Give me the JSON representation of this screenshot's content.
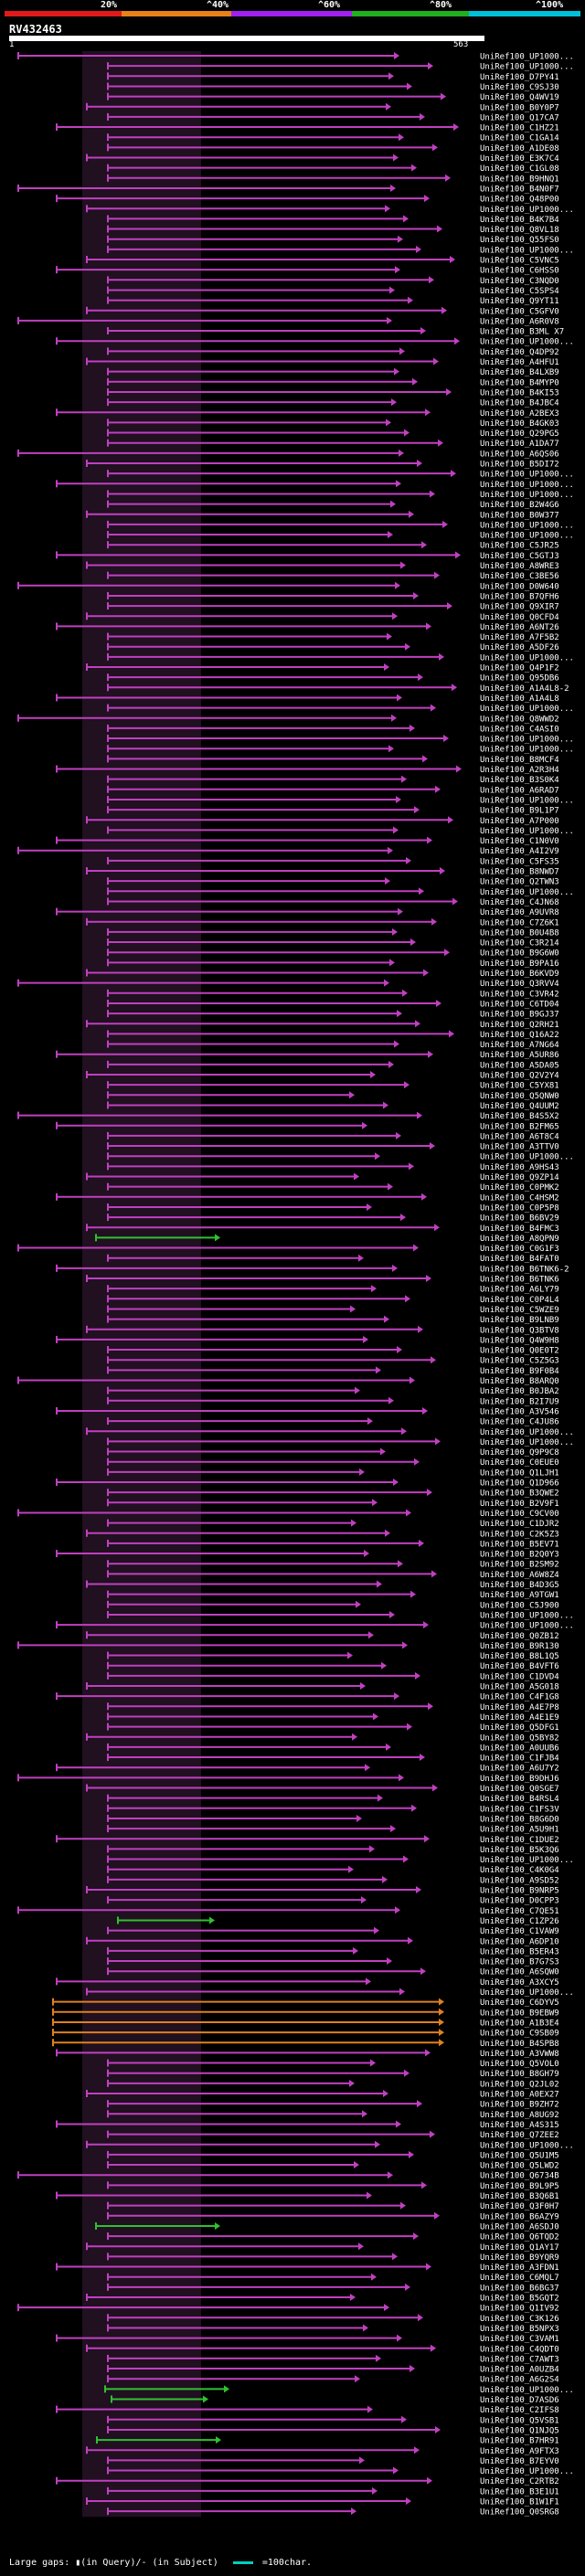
{
  "scale": {
    "labels": [
      "20%",
      "^40%",
      "^60%",
      "^80%",
      "^100%"
    ],
    "colors": [
      "#e11919",
      "#e8801a",
      "#a020f0",
      "#20b020",
      "#00c0d8"
    ]
  },
  "query": {
    "name": "RV432463",
    "start": "1",
    "end": "563"
  },
  "hit_colors": {
    "magenta": "#c040c0",
    "green": "#30c030",
    "orange": "#e08020"
  },
  "hits": [
    "UniRef100_UP1000...",
    "UniRef100_UP1000...",
    "UniRef100_D7PY41",
    "UniRef100_C9SJ30",
    "UniRef100_Q4WV19",
    "UniRef100_B0Y0P7",
    "UniRef100_Q17CA7",
    "UniRef100_C1HZ21",
    "UniRef100_C1GA14",
    "UniRef100_A1DE08",
    "UniRef100_E3K7C4",
    "UniRef100_C1GL08",
    "UniRef100_B9HNQ1",
    "UniRef100_B4N0F7",
    "UniRef100_Q48P00",
    "UniRef100_UP1000...",
    "UniRef100_B4K7B4",
    "UniRef100_Q8VL18",
    "UniRef100_Q55FS0",
    "UniRef100_UP1000...",
    "UniRef100_C5VNC5",
    "UniRef100_C6HSS0",
    "UniRef100_C3NQD0",
    "UniRef100_C5SPS4",
    "UniRef100_Q9YT11",
    "UniRef100_C5GFV0",
    "UniRef100_A6R0V8",
    "UniRef100_B3ML X7",
    "UniRef100_UP1000...",
    "UniRef100_Q4DP92",
    "UniRef100_A4HFU1",
    "UniRef100_B4LXB9",
    "UniRef100_B4MYP0",
    "UniRef100_B4KI53",
    "UniRef100_B4JBC4",
    "UniRef100_A2BEX3",
    "UniRef100_B4GK03",
    "UniRef100_Q29PG5",
    "UniRef100_A1DA77",
    "UniRef100_A6QS06",
    "UniRef100_B5DI72",
    "UniRef100_UP1000...",
    "UniRef100_UP1000...",
    "UniRef100_UP1000...",
    "UniRef100_B2W4G6",
    "UniRef100_B0W377",
    "UniRef100_UP1000...",
    "UniRef100_UP1000...",
    "UniRef100_C5JR25",
    "UniRef100_C5GTJ3",
    "UniRef100_A8WRE3",
    "UniRef100_C3BE56",
    "UniRef100_D0W640",
    "UniRef100_B7QFH6",
    "UniRef100_Q9XIR7",
    "UniRef100_Q0CFD4",
    "UniRef100_A6NT26",
    "UniRef100_A7F5B2",
    "UniRef100_A5DF26",
    "UniRef100_UP1000...",
    "UniRef100_Q4P1F2",
    "UniRef100_Q95DB6",
    "UniRef100_A1A4L8-2",
    "UniRef100_A1A4L8",
    "UniRef100_UP1000...",
    "UniRef100_Q8WWD2",
    "UniRef100_C4ASI0",
    "UniRef100_UP1000...",
    "UniRef100_UP1000...",
    "UniRef100_B8MCF4",
    "UniRef100_A2R3H4",
    "UniRef100_B3S0K4",
    "UniRef100_A6RAD7",
    "UniRef100_UP1000...",
    "UniRef100_B9L1P7",
    "UniRef100_A7P000",
    "UniRef100_UP1000...",
    "UniRef100_C1N0V0",
    "UniRef100_A4I2V9",
    "UniRef100_C5FS35",
    "UniRef100_B8NWD7",
    "UniRef100_Q2TWN3",
    "UniRef100_UP1000...",
    "UniRef100_C4JN68",
    "UniRef100_A9UVR8",
    "UniRef100_C7Z6K1",
    "UniRef100_B0U4B8",
    "UniRef100_C3R214",
    "UniRef100_B9G6W0",
    "UniRef100_B9PA16",
    "UniRef100_B6KVD9",
    "UniRef100_Q3RVV4",
    "UniRef100_C3VR42",
    "UniRef100_C6TD04",
    "UniRef100_B9GJ37",
    "UniRef100_Q2RH21",
    "UniRef100_Q16A22",
    "UniRef100_A7NG64",
    "UniRef100_A5UR86",
    "UniRef100_A5DA05",
    "UniRef100_Q2V2Y4",
    "UniRef100_C5YX81",
    "UniRef100_Q5QNW0",
    "UniRef100_Q4UUM2",
    "UniRef100_B4S5X2",
    "UniRef100_B2FM65",
    "UniRef100_A6T8C4",
    "UniRef100_A3TTV0",
    "UniRef100_UP1000...",
    "UniRef100_A9HS43",
    "UniRef100_Q9ZP14",
    "UniRef100_C0PMK2",
    "UniRef100_C4HSM2",
    "UniRef100_C0P5P8",
    "UniRef100_B6BV29",
    "UniRef100_B4FMC3",
    "UniRef100_A8QPN9",
    "UniRef100_C0G1F3",
    "UniRef100_B4FAT0",
    "UniRef100_B6TNK6-2",
    "UniRef100_B6TNK6",
    "UniRef100_A6LY79",
    "UniRef100_C0P4L4",
    "UniRef100_C5WZE9",
    "UniRef100_B9LNB9",
    "UniRef100_Q3BTV8",
    "UniRef100_Q4W9H8",
    "UniRef100_Q0E0T2",
    "UniRef100_C5Z5G3",
    "UniRef100_B9F0B4",
    "UniRef100_B8ARQ0",
    "UniRef100_B0JBA2",
    "UniRef100_B2I7U9",
    "UniRef100_A3V546",
    "UniRef100_C4JU86",
    "UniRef100_UP1000...",
    "UniRef100_UP1000...",
    "UniRef100_Q9P9C8",
    "UniRef100_C0EUE0",
    "UniRef100_Q1LJH1",
    "UniRef100_Q1D966",
    "UniRef100_B3QWE2",
    "UniRef100_B2V9F1",
    "UniRef100_C9CV00",
    "UniRef100_C1DJR2",
    "UniRef100_C2K5Z3",
    "UniRef100_B5EV71",
    "UniRef100_B2Q0Y3",
    "UniRef100_B2SM92",
    "UniRef100_A6W8Z4",
    "UniRef100_B4D3G5",
    "UniRef100_A9TGW1",
    "UniRef100_C5J900",
    "UniRef100_UP1000...",
    "UniRef100_UP1000...",
    "UniRef100_Q0ZB12",
    "UniRef100_B9R130",
    "UniRef100_B8L1Q5",
    "UniRef100_B4VFT6",
    "UniRef100_C1DVD4",
    "UniRef100_A5G018",
    "UniRef100_C4F1G8",
    "UniRef100_A4E7P8",
    "UniRef100_A4E1E9",
    "UniRef100_Q5DFG1",
    "UniRef100_Q5BY82",
    "UniRef100_A0UUB6",
    "UniRef100_C1FJB4",
    "UniRef100_A6U7Y2",
    "UniRef100_B9DHJ6",
    "UniRef100_Q0SGE7",
    "UniRef100_B4RSL4",
    "UniRef100_C1FS3V",
    "UniRef100_B8G6D0",
    "UniRef100_A5U9H1",
    "UniRef100_C1DUE2",
    "UniRef100_B5K3Q6",
    "UniRef100_UP1000...",
    "UniRef100_C4K0G4",
    "UniRef100_A9SD52",
    "UniRef100_B9NRP5",
    "UniRef100_D0CPP3",
    "UniRef100_C7QE51",
    "UniRef100_C1ZP26",
    "UniRef100_C1VAW9",
    "UniRef100_A6DP10",
    "UniRef100_B5ER43",
    "UniRef100_B7G7S3",
    "UniRef100_A6SQW0",
    "UniRef100_A3XCY5",
    "UniRef100_UP1000...",
    "UniRef100_C6DYV5",
    "UniRef100_B9EBW9",
    "UniRef100_A1B3E4",
    "UniRef100_C9SB09",
    "UniRef100_B4SPB8",
    "UniRef100_A3VWW8",
    "UniRef100_Q5VOL0",
    "UniRef100_B8GH79",
    "UniRef100_Q2JL02",
    "UniRef100_A0EX27",
    "UniRef100_B9ZH72",
    "UniRef100_A8UG92",
    "UniRef100_A4S315",
    "UniRef100_Q7ZEE2",
    "UniRef100_UP1000...",
    "UniRef100_Q5U1M5",
    "UniRef100_Q5LWD2",
    "UniRef100_Q6734B",
    "UniRef100_B9L9P5",
    "UniRef100_B3Q6B1",
    "UniRef100_Q3F0H7",
    "UniRef100_B6AZY9",
    "UniRef100_A6SDJ0",
    "UniRef100_Q6TQD2",
    "UniRef100_Q1AY17",
    "UniRef100_B9YQR9",
    "UniRef100_A3FDN1",
    "UniRef100_C6MQL7",
    "UniRef100_B6BG37",
    "UniRef100_B5GQT2",
    "UniRef100_Q1IV92",
    "UniRef100_C3K126",
    "UniRef100_B5NPX3",
    "UniRef100_C3VAM1",
    "UniRef100_C4QDT0",
    "UniRef100_C7AWT3",
    "UniRef100_A0UZB4",
    "UniRef100_A6G2S4",
    "UniRef100_UP1000...",
    "UniRef100_D7ASD6",
    "UniRef100_C2IFS8",
    "UniRef100_Q5VSB1",
    "UniRef100_Q1NJQ5",
    "UniRef100_B7HR91",
    "UniRef100_A9FTX3",
    "UniRef100_B7EYV0",
    "UniRef100_UP1000...",
    "UniRef100_C2RTB2",
    "UniRef100_B3E1U1",
    "UniRef100_B1W1F1",
    "UniRef100_Q0SRG8"
  ],
  "footer": {
    "gaps_text": "Large gaps: ▮(in Query)/- (in Subject)",
    "legend_text": "=100char."
  }
}
